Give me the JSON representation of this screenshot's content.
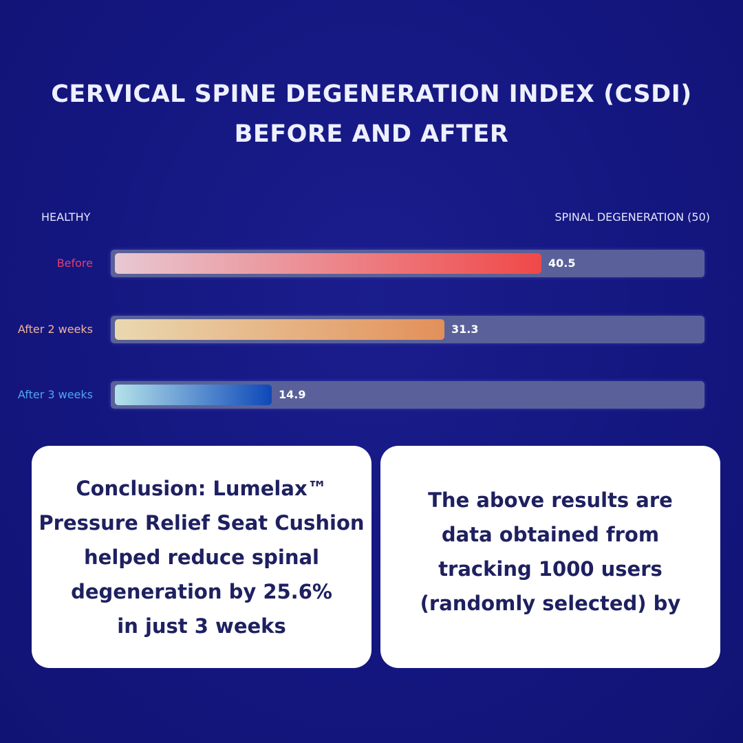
{
  "title": {
    "line1": "CERVICAL SPINE DEGENERATION INDEX (CSDI)",
    "line2": "BEFORE AND AFTER"
  },
  "chart_data": {
    "type": "bar",
    "orientation": "horizontal",
    "title": "CERVICAL SPINE DEGENERATION INDEX (CSDI) BEFORE AND AFTER",
    "axis_left_label": "HEALTHY",
    "axis_right_label": "SPINAL DEGENERATION (50)",
    "xlim": [
      0,
      50
    ],
    "categories": [
      "Before",
      "After 2 weeks",
      "After 3 weeks"
    ],
    "values": [
      40.5,
      31.3,
      14.9
    ],
    "value_labels": [
      "40.5",
      "31.3",
      "14.9"
    ],
    "label_colors": [
      "#e0406a",
      "#f0b59a",
      "#4ea8f0"
    ],
    "gradients": [
      [
        "#e8c8d2",
        "#f04848"
      ],
      [
        "#ead8b0",
        "#e2905a"
      ],
      [
        "#b4e2ea",
        "#0d48b8"
      ]
    ]
  },
  "cards": {
    "left": [
      "Conclusion: Lumelax™",
      "Pressure Relief Seat Cushion",
      "helped reduce spinal",
      "degeneration by 25.6%",
      "in just 3 weeks"
    ],
    "right": [
      "The above results are",
      "data obtained from",
      "tracking 1000 users",
      "(randomly selected) by"
    ]
  }
}
